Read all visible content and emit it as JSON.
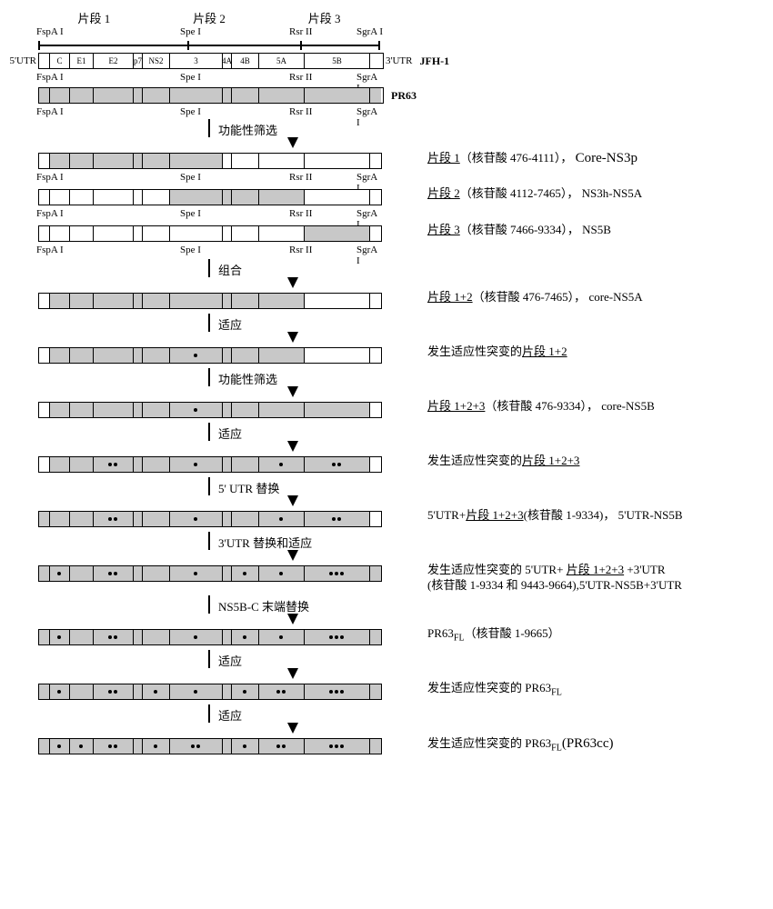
{
  "fragments_top": [
    "片段 1",
    "片段 2",
    "片段 3"
  ],
  "enzymes": [
    "FspA I",
    "Spe I",
    "Rsr II",
    "SgrA I"
  ],
  "gene_labels": [
    "5'UTR",
    "C",
    "E1",
    "E2",
    "p7",
    "NS2",
    "3",
    "4A",
    "4B",
    "5A",
    "5B",
    "3'UTR"
  ],
  "strains": {
    "jfh1": "JFH-1",
    "pr63": "PR63"
  },
  "arrows": {
    "func_sel": "功能性筛选",
    "combine": "组合",
    "adapt": "适应",
    "utr5": "5' UTR 替换",
    "utr3": "3'UTR 替换和适应",
    "ns5bc": "NS5B-C 末端替换"
  },
  "descs": {
    "f1": {
      "u": "片段 1",
      "rest": "（核苷酸 476-4111），",
      "name": "Core-NS3p"
    },
    "f2": {
      "u": "片段 2",
      "rest": "（核苷酸 4112-7465），",
      "name": "NS3h-NS5A"
    },
    "f3": {
      "u": "片段 3",
      "rest": "（核苷酸 7466-9334），",
      "name": "NS5B"
    },
    "f12": {
      "u": "片段 1+2",
      "rest": "（核苷酸 476-7465），",
      "name": "core-NS5A"
    },
    "f12a": {
      "pre": "发生适应性突变的",
      "u": "片段 1+2"
    },
    "f123": {
      "u": "片段 1+2+3",
      "rest": "（核苷酸 476-9334），",
      "name": "core-NS5B"
    },
    "f123a": {
      "pre": "发生适应性突变的",
      "u": "片段 1+2+3"
    },
    "utr5f": {
      "pre": "5'UTR+",
      "u": "片段 1+2+3",
      "rest": "(核苷酸 1-9334)，",
      "name": "5'UTR-NS5B"
    },
    "utr3f_l1": {
      "pre": "发生适应性突变的 5'UTR+ ",
      "u": "片段 1+2+3",
      "rest": " +3'UTR"
    },
    "utr3f_l2": "(核苷酸 1-9334 和 9443-9664),5'UTR-NS5B+3'UTR",
    "pr63fl": {
      "name": "PR63",
      "rest": "（核苷酸 1-9665）"
    },
    "pr63fla": {
      "pre": "发生适应性突变的 ",
      "name": "PR63"
    },
    "pr63cc": {
      "pre": "发生适应性突变的 ",
      "name": "PR63",
      "post": "(PR63cc)"
    }
  },
  "widths": {
    "utr5": 12,
    "c": 22,
    "e1": 26,
    "e2": 44,
    "p7": 10,
    "ns2": 30,
    "ns3": 58,
    "ns4a": 10,
    "ns4b": 30,
    "ns5a": 50,
    "ns5b": 72,
    "utr3": 12
  },
  "enzyme_positions": {
    "fspa": 0,
    "spe": 162,
    "rsr": 282,
    "sgra": 358
  },
  "colors": {
    "white": "#ffffff",
    "gray": "#c8c8c8"
  }
}
